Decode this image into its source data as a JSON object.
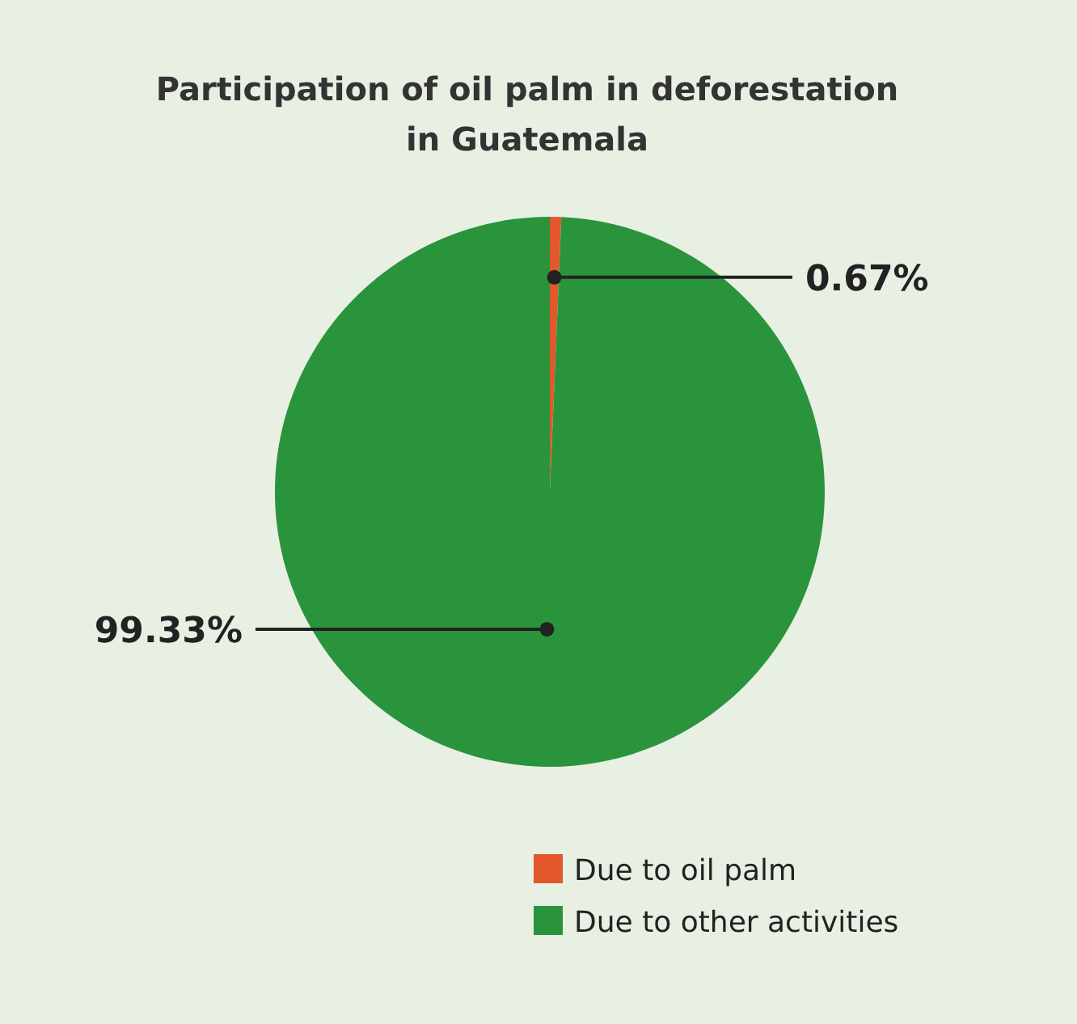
{
  "chart_data": {
    "type": "pie",
    "title": "Participation of oil palm in deforestation in Guatemala",
    "categories": [
      "Due to oil palm",
      "Due to other activities"
    ],
    "values": [
      0.67,
      99.33
    ],
    "colors": [
      "#e2582a",
      "#2a943c"
    ],
    "value_labels": [
      "0.67%",
      "99.33%"
    ],
    "legend": "bottom"
  }
}
